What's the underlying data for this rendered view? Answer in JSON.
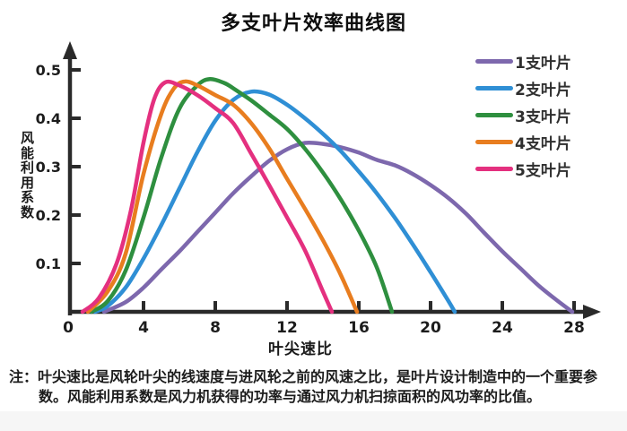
{
  "chart_data": {
    "type": "line",
    "title": "多支叶片效率曲线图",
    "xlabel": "叶尖速比",
    "ylabel": "风能利用系数",
    "xlim": [
      0,
      29
    ],
    "ylim": [
      0,
      0.52
    ],
    "x_ticks": [
      0,
      4,
      8,
      12,
      16,
      20,
      24,
      28
    ],
    "y_ticks": [
      0.1,
      0.2,
      0.3,
      0.4,
      0.5
    ],
    "grid": false,
    "legend_position": "top-right",
    "axis_color": "#2a2a2a",
    "series": [
      {
        "name": "1支叶片",
        "color": "#7d68ad",
        "points": [
          [
            1.8,
            0
          ],
          [
            3,
            0.02
          ],
          [
            4,
            0.05
          ],
          [
            5,
            0.088
          ],
          [
            6,
            0.125
          ],
          [
            7,
            0.165
          ],
          [
            8,
            0.205
          ],
          [
            9,
            0.245
          ],
          [
            10,
            0.28
          ],
          [
            11,
            0.312
          ],
          [
            12,
            0.336
          ],
          [
            13,
            0.349
          ],
          [
            14,
            0.347
          ],
          [
            15,
            0.34
          ],
          [
            16,
            0.329
          ],
          [
            17,
            0.314
          ],
          [
            18,
            0.303
          ],
          [
            19,
            0.285
          ],
          [
            20,
            0.262
          ],
          [
            21,
            0.235
          ],
          [
            22,
            0.202
          ],
          [
            23,
            0.163
          ],
          [
            24,
            0.125
          ],
          [
            25,
            0.09
          ],
          [
            26,
            0.055
          ],
          [
            27,
            0.025
          ],
          [
            27.9,
            0
          ]
        ]
      },
      {
        "name": "2支叶片",
        "color": "#2f8fd5",
        "points": [
          [
            1.3,
            0
          ],
          [
            2,
            0.012
          ],
          [
            3,
            0.05
          ],
          [
            4,
            0.11
          ],
          [
            5,
            0.18
          ],
          [
            6,
            0.255
          ],
          [
            7,
            0.33
          ],
          [
            8,
            0.395
          ],
          [
            9,
            0.438
          ],
          [
            10,
            0.455
          ],
          [
            11,
            0.449
          ],
          [
            12,
            0.428
          ],
          [
            13,
            0.4
          ],
          [
            14,
            0.368
          ],
          [
            15,
            0.332
          ],
          [
            16,
            0.29
          ],
          [
            17,
            0.245
          ],
          [
            18,
            0.195
          ],
          [
            19,
            0.14
          ],
          [
            20,
            0.082
          ],
          [
            21,
            0.022
          ],
          [
            21.35,
            0
          ]
        ]
      },
      {
        "name": "3支叶片",
        "color": "#2e8f3f",
        "points": [
          [
            1.1,
            0
          ],
          [
            2,
            0.022
          ],
          [
            3,
            0.085
          ],
          [
            4,
            0.195
          ],
          [
            5,
            0.32
          ],
          [
            6,
            0.42
          ],
          [
            7,
            0.468
          ],
          [
            7.7,
            0.481
          ],
          [
            8.5,
            0.473
          ],
          [
            9,
            0.462
          ],
          [
            10,
            0.437
          ],
          [
            11,
            0.408
          ],
          [
            12,
            0.378
          ],
          [
            13,
            0.337
          ],
          [
            14,
            0.288
          ],
          [
            15,
            0.232
          ],
          [
            16,
            0.168
          ],
          [
            17,
            0.092
          ],
          [
            17.85,
            0
          ]
        ]
      },
      {
        "name": "4支叶片",
        "color": "#e87d1f",
        "points": [
          [
            0.9,
            0
          ],
          [
            2,
            0.042
          ],
          [
            3,
            0.12
          ],
          [
            4,
            0.285
          ],
          [
            5,
            0.41
          ],
          [
            5.7,
            0.462
          ],
          [
            6.3,
            0.476
          ],
          [
            7,
            0.468
          ],
          [
            8,
            0.448
          ],
          [
            9,
            0.428
          ],
          [
            10,
            0.39
          ],
          [
            11,
            0.338
          ],
          [
            12,
            0.275
          ],
          [
            13,
            0.213
          ],
          [
            14,
            0.148
          ],
          [
            15,
            0.076
          ],
          [
            15.9,
            0
          ]
        ]
      },
      {
        "name": "5支叶片",
        "color": "#e4307f",
        "points": [
          [
            0.6,
            0
          ],
          [
            1.5,
            0.028
          ],
          [
            2.5,
            0.1
          ],
          [
            3.3,
            0.21
          ],
          [
            4,
            0.35
          ],
          [
            4.6,
            0.44
          ],
          [
            5.2,
            0.474
          ],
          [
            6,
            0.468
          ],
          [
            7,
            0.448
          ],
          [
            8,
            0.421
          ],
          [
            9,
            0.39
          ],
          [
            10,
            0.327
          ],
          [
            11,
            0.262
          ],
          [
            12,
            0.195
          ],
          [
            13,
            0.127
          ],
          [
            14,
            0.042
          ],
          [
            14.5,
            0
          ]
        ]
      }
    ]
  },
  "note": {
    "line1": "注：叶尖速比是风轮叶尖的线速度与进风轮之前的风速之比，是叶片设计制造中的一个重要参",
    "line2": "数。风能利用系数是风力机获得的功率与通过风力机扫掠面积的风功率的比值。"
  }
}
